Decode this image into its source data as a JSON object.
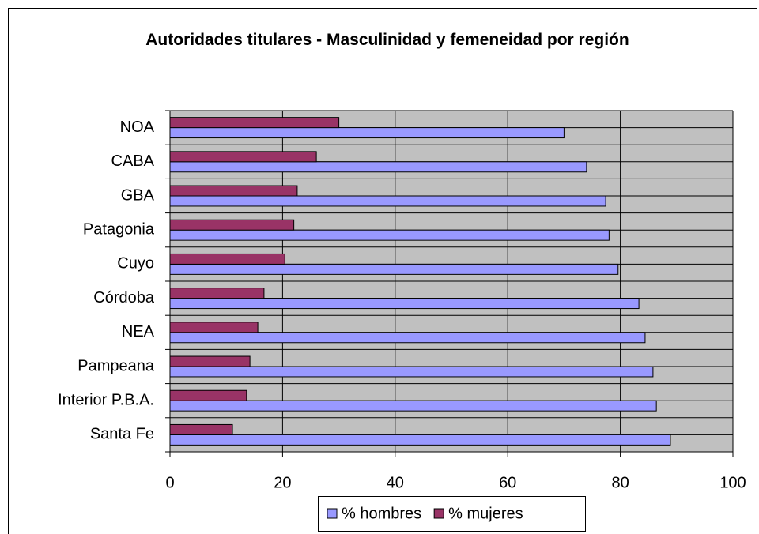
{
  "chart_data": {
    "type": "barh",
    "title": "Autoridades titulares - Masculinidad y femeneidad por región",
    "categories": [
      "NOA",
      "CABA",
      "GBA",
      "Patagonia",
      "Cuyo",
      "Córdoba",
      "NEA",
      "Pampeana",
      "Interior P.B.A.",
      "Santa Fe"
    ],
    "series": [
      {
        "name": "% hombres",
        "color": "#9999ff",
        "values": [
          70,
          74,
          77.4,
          78,
          79.6,
          83.3,
          84.4,
          85.8,
          86.4,
          88.9
        ]
      },
      {
        "name": "% mujeres",
        "color": "#993366",
        "values": [
          30,
          26,
          22.6,
          22,
          20.4,
          16.7,
          15.6,
          14.2,
          13.6,
          11.1
        ]
      }
    ],
    "xlim": [
      0,
      100
    ],
    "xticks": [
      0,
      20,
      40,
      60,
      80,
      100
    ],
    "grid": true,
    "legend": "bottom"
  }
}
